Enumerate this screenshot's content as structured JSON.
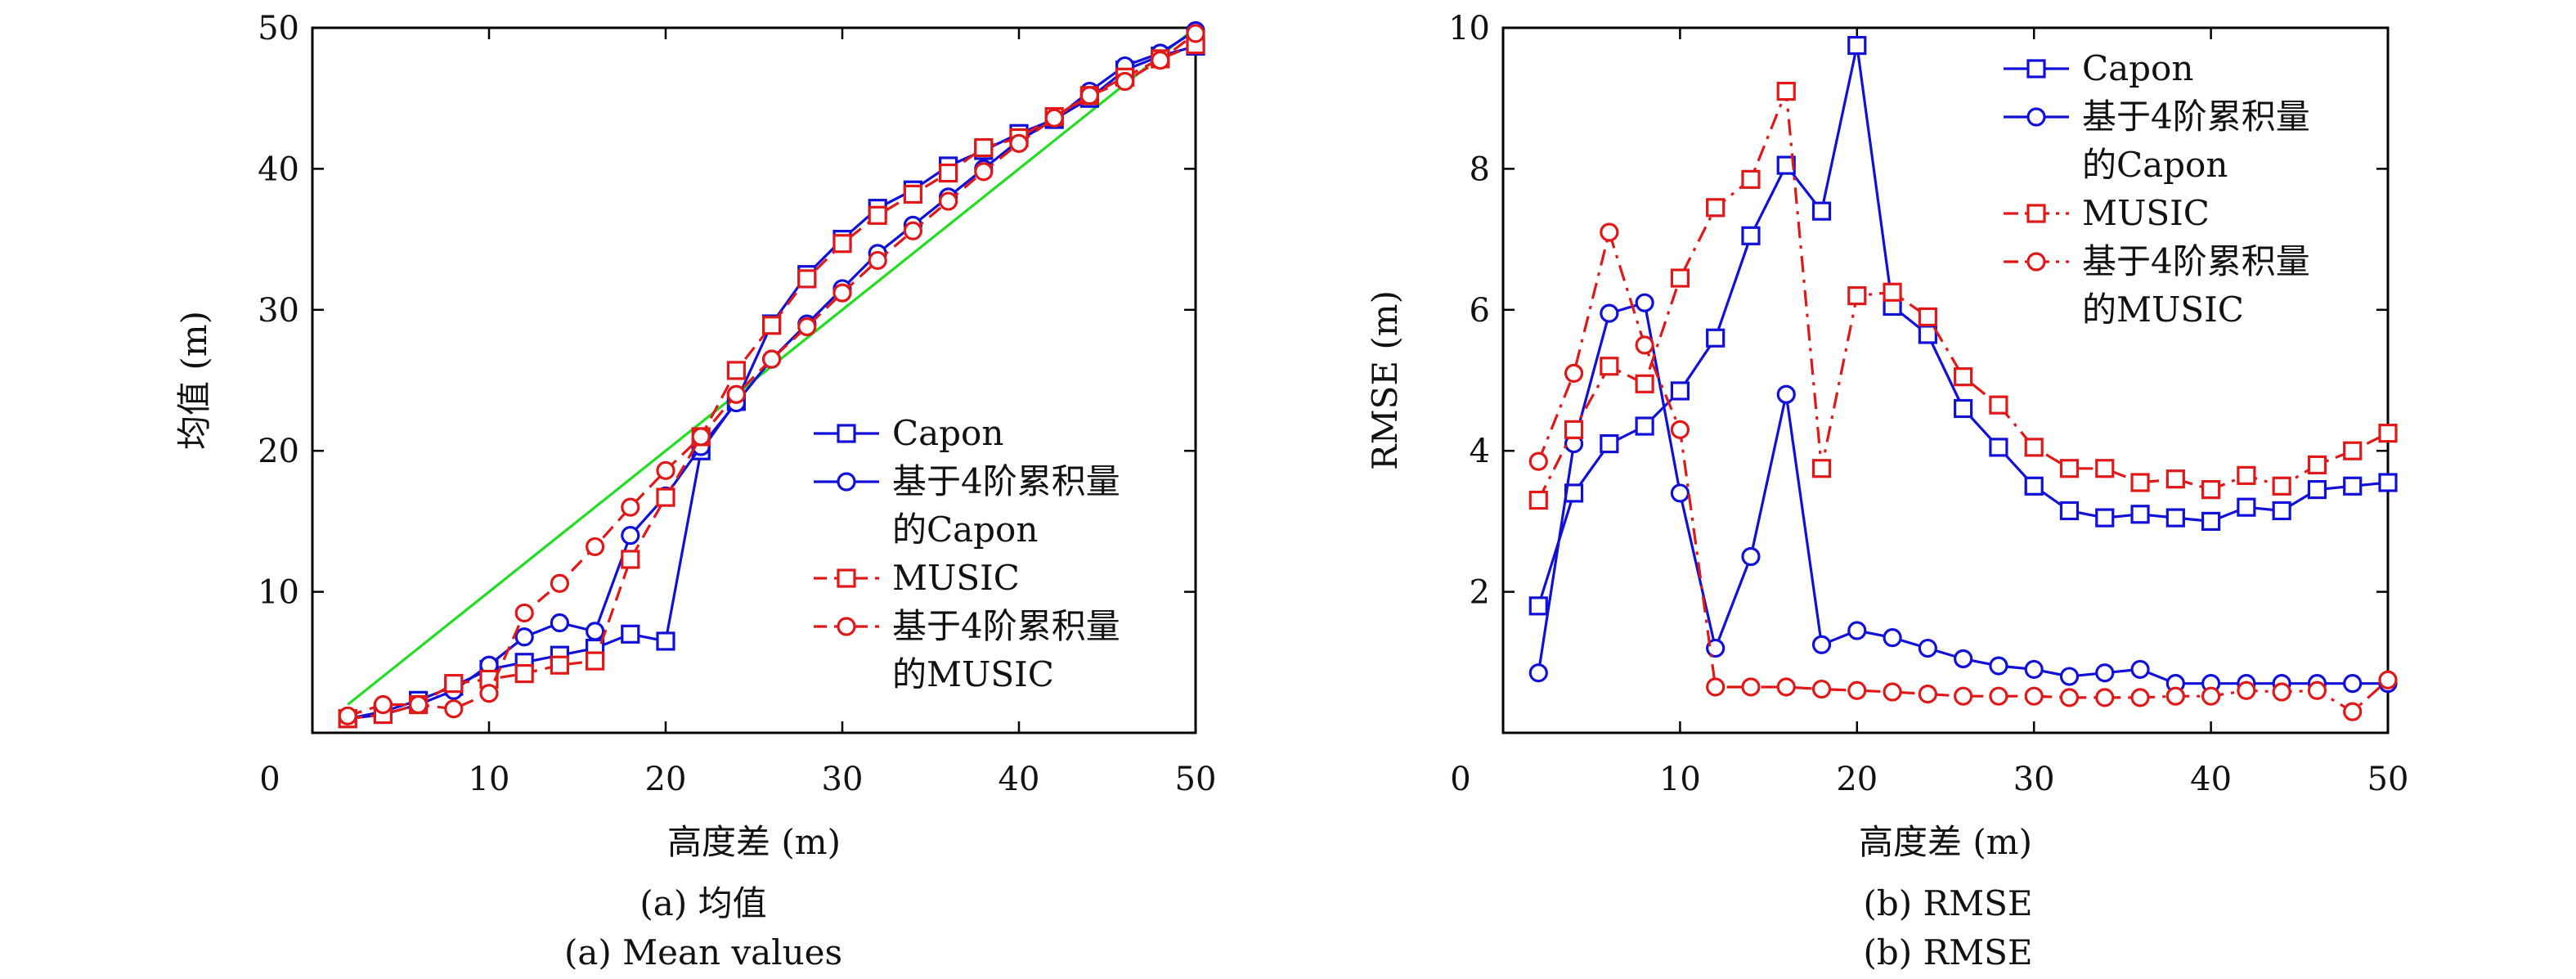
{
  "colors": {
    "blue": "#1010d8",
    "red": "#e01818",
    "green": "#22dd22",
    "axis": "#000000"
  },
  "chart_data": [
    {
      "type": "line",
      "ylabel": "均值 (m)",
      "xlabel": "高度差 (m)",
      "caption_zh": "(a) 均值",
      "caption_en": "(a) Mean values",
      "xlim": [
        0,
        50
      ],
      "ylim": [
        0,
        50
      ],
      "xticks": [
        0,
        10,
        20,
        30,
        40,
        50
      ],
      "yticks": [
        10,
        20,
        30,
        40,
        50
      ],
      "grid": false,
      "legend_position": "lower-right",
      "x": [
        2,
        4,
        6,
        8,
        10,
        12,
        14,
        16,
        18,
        20,
        22,
        24,
        26,
        28,
        30,
        32,
        34,
        36,
        38,
        40,
        42,
        44,
        46,
        48,
        50
      ],
      "reference_line": {
        "x": [
          2,
          50
        ],
        "y": [
          2,
          50
        ]
      },
      "series": [
        {
          "name": "Capon",
          "color": "blue",
          "marker": "square",
          "dash": "solid",
          "values": [
            1.0,
            1.5,
            2.3,
            3.3,
            4.5,
            5.0,
            5.5,
            6.0,
            7.0,
            6.5,
            20.0,
            23.5,
            29.0,
            32.5,
            35.0,
            37.2,
            38.5,
            40.2,
            41.3,
            42.5,
            43.5,
            45.0,
            47.0,
            48.0,
            48.7
          ]
        },
        {
          "name_lines": [
            "基于4阶累积量",
            "的Capon"
          ],
          "color": "blue",
          "marker": "circle",
          "dash": "solid",
          "values": [
            1.0,
            1.3,
            2.0,
            3.0,
            4.8,
            6.8,
            7.8,
            7.2,
            14.0,
            16.8,
            20.3,
            23.4,
            26.5,
            29.0,
            31.5,
            34.0,
            36.0,
            38.0,
            40.0,
            42.0,
            43.5,
            45.5,
            47.3,
            48.2,
            49.8
          ]
        },
        {
          "name": "MUSIC",
          "color": "red",
          "marker": "square",
          "dash": "dashed",
          "values": [
            1.0,
            1.3,
            2.0,
            3.5,
            3.8,
            4.2,
            4.8,
            5.1,
            12.3,
            16.7,
            21.0,
            25.7,
            28.9,
            32.2,
            34.7,
            36.7,
            38.2,
            39.7,
            41.5,
            42.2,
            43.7,
            45.2,
            46.5,
            47.8,
            48.8
          ]
        },
        {
          "name_lines": [
            "基于4阶累积量",
            "的MUSIC"
          ],
          "color": "red",
          "marker": "circle",
          "dash": "dashed",
          "values": [
            1.2,
            2.0,
            2.0,
            1.7,
            2.8,
            8.5,
            10.6,
            13.2,
            16.0,
            18.6,
            21.0,
            24.0,
            26.5,
            28.8,
            31.2,
            33.5,
            35.6,
            37.7,
            39.8,
            41.8,
            43.6,
            45.2,
            46.2,
            47.7,
            49.6
          ]
        }
      ]
    },
    {
      "type": "line",
      "ylabel": "RMSE (m)",
      "xlabel": "高度差 (m)",
      "caption_zh": "(b) RMSE",
      "caption_en": "(b) RMSE",
      "xlim": [
        0,
        50
      ],
      "ylim": [
        0,
        10
      ],
      "xticks": [
        0,
        10,
        20,
        30,
        40,
        50
      ],
      "yticks": [
        2,
        4,
        6,
        8,
        10
      ],
      "grid": false,
      "legend_position": "top-right",
      "x": [
        2,
        4,
        6,
        8,
        10,
        12,
        14,
        16,
        18,
        20,
        22,
        24,
        26,
        28,
        30,
        32,
        34,
        36,
        38,
        40,
        42,
        44,
        46,
        48,
        50
      ],
      "series": [
        {
          "name": "Capon",
          "color": "blue",
          "marker": "square",
          "dash": "solid",
          "values": [
            1.8,
            3.4,
            4.1,
            4.35,
            4.85,
            5.6,
            7.05,
            8.05,
            7.4,
            9.75,
            6.05,
            5.65,
            4.6,
            4.05,
            3.5,
            3.15,
            3.05,
            3.1,
            3.05,
            3.0,
            3.2,
            3.15,
            3.45,
            3.5,
            3.55
          ]
        },
        {
          "name_lines": [
            "基于4阶累积量",
            "的Capon"
          ],
          "color": "blue",
          "marker": "circle",
          "dash": "solid",
          "values": [
            0.85,
            4.1,
            5.95,
            6.1,
            3.4,
            1.2,
            2.5,
            4.8,
            1.25,
            1.45,
            1.35,
            1.2,
            1.05,
            0.95,
            0.9,
            0.8,
            0.85,
            0.9,
            0.7,
            0.7,
            0.7,
            0.7,
            0.7,
            0.7,
            0.7
          ]
        },
        {
          "name": "MUSIC",
          "color": "red",
          "marker": "square",
          "dash": "dashdot",
          "values": [
            3.3,
            4.3,
            5.2,
            4.95,
            6.45,
            7.45,
            7.85,
            9.1,
            3.75,
            6.2,
            6.25,
            5.9,
            5.05,
            4.65,
            4.05,
            3.75,
            3.75,
            3.55,
            3.6,
            3.45,
            3.65,
            3.5,
            3.8,
            4.0,
            4.25
          ]
        },
        {
          "name_lines": [
            "基于4阶累积量",
            "的MUSIC"
          ],
          "color": "red",
          "marker": "circle",
          "dash": "dashdot",
          "values": [
            3.85,
            5.1,
            7.1,
            5.5,
            4.3,
            0.65,
            0.65,
            0.65,
            0.62,
            0.6,
            0.58,
            0.55,
            0.52,
            0.52,
            0.52,
            0.5,
            0.5,
            0.5,
            0.52,
            0.52,
            0.6,
            0.58,
            0.6,
            0.3,
            0.75
          ]
        }
      ]
    }
  ]
}
